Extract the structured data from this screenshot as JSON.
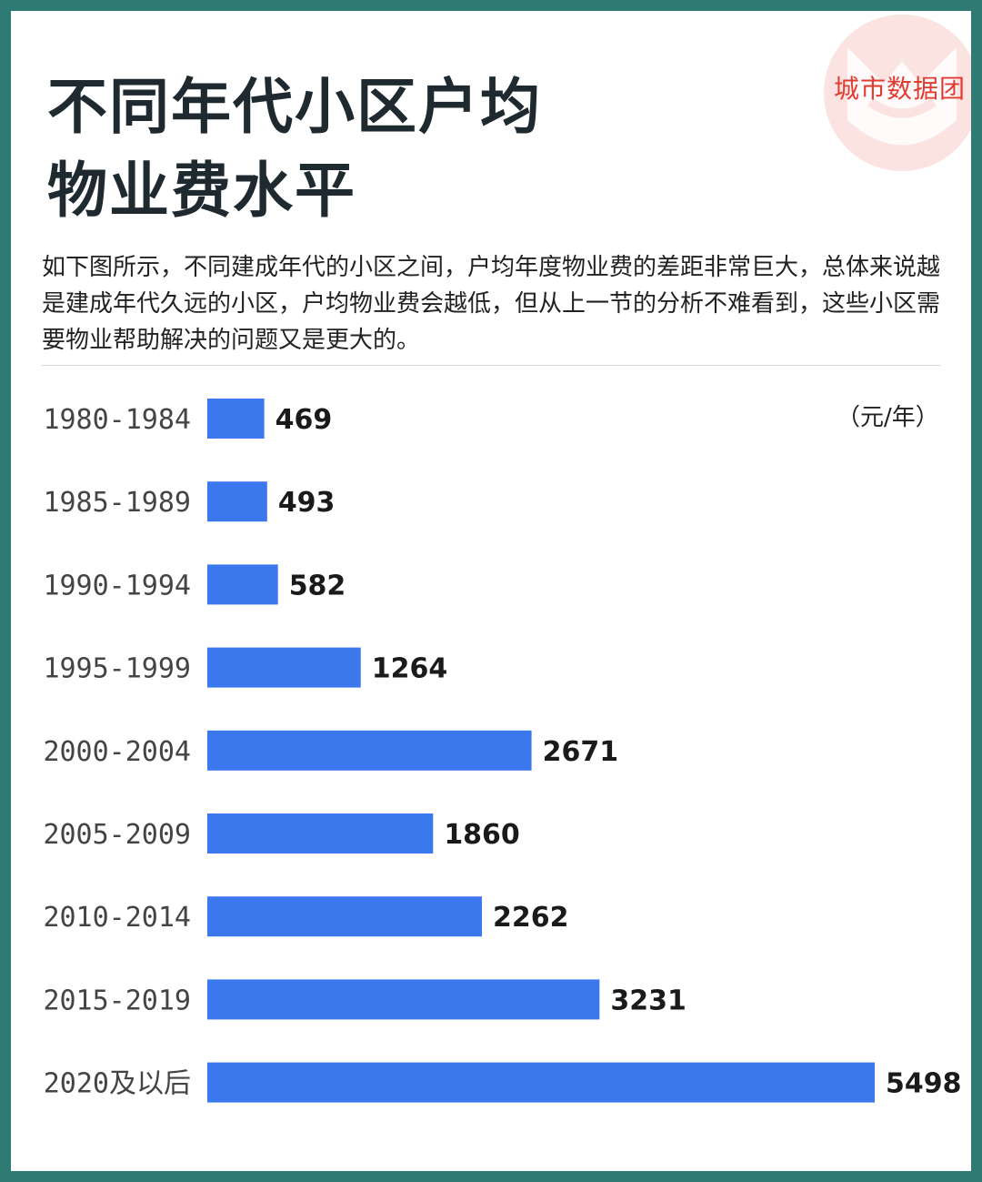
{
  "header": {
    "title_line1": "不同年代小区户均",
    "title_line2": "物业费水平",
    "brand": "城市数据团"
  },
  "intro": "如下图所示，不同建成年代的小区之间，户均年度物业费的差距非常巨大，总体来说越是建成年代久远的小区，户均物业费会越低，但从上一节的分析不难看到，这些小区需要物业帮助解决的问题又是更大的。",
  "colors": {
    "bar": "#3b78ee",
    "brand": "#e23b32",
    "frame": "#2f7a72"
  },
  "chart_data": {
    "type": "bar",
    "orientation": "horizontal",
    "unit_label": "（元/年）",
    "categories": [
      "1980-1984",
      "1985-1989",
      "1990-1994",
      "1995-1999",
      "2000-2004",
      "2005-2009",
      "2010-2014",
      "2015-2019",
      "2020及以后"
    ],
    "values": [
      469,
      493,
      582,
      1264,
      2671,
      1860,
      2262,
      3231,
      5498
    ],
    "xlim": [
      0,
      5498
    ],
    "grid": false,
    "legend": "none"
  }
}
